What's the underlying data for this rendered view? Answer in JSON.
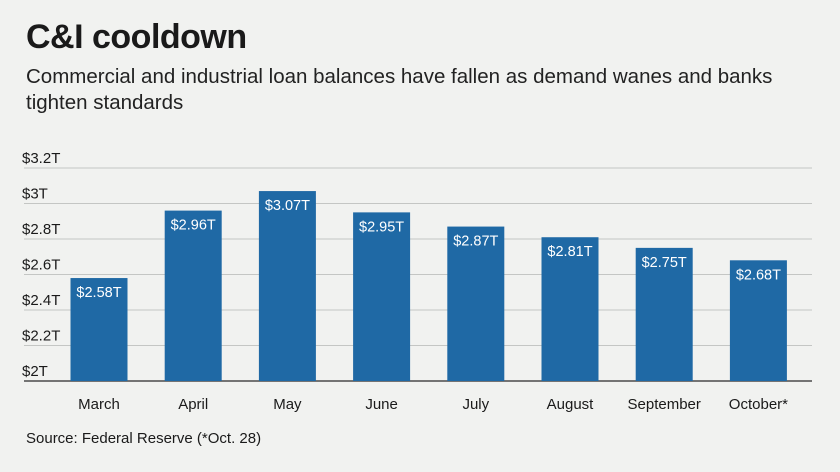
{
  "header": {
    "title": "C&I cooldown",
    "subtitle": "Commercial and industrial loan balances have fallen as demand wanes and banks tighten standards"
  },
  "footer": {
    "source": "Source: Federal Reserve (*Oct. 28)"
  },
  "colors": {
    "bar": "#1f69a5",
    "bar_label": "#ffffff",
    "grid": "#c4c6c4",
    "baseline": "#4a4a4a",
    "background": "#f1f2f0"
  },
  "chart_data": {
    "type": "bar",
    "categories": [
      "March",
      "April",
      "May",
      "June",
      "July",
      "August",
      "September",
      "October*"
    ],
    "values": [
      2.58,
      2.96,
      3.07,
      2.95,
      2.87,
      2.81,
      2.75,
      2.68
    ],
    "data_labels": [
      "$2.58T",
      "$2.96T",
      "$3.07T",
      "$2.95T",
      "$2.87T",
      "$2.81T",
      "$2.75T",
      "$2.68T"
    ],
    "ylim": [
      2.0,
      3.2
    ],
    "yticks": [
      2.0,
      2.2,
      2.4,
      2.6,
      2.8,
      3.0,
      3.2
    ],
    "ytick_labels": [
      "$2T",
      "$2.2T",
      "$2.4T",
      "$2.6T",
      "$2.8T",
      "$3T",
      "$3.2T"
    ],
    "grid": true,
    "legend": false
  }
}
